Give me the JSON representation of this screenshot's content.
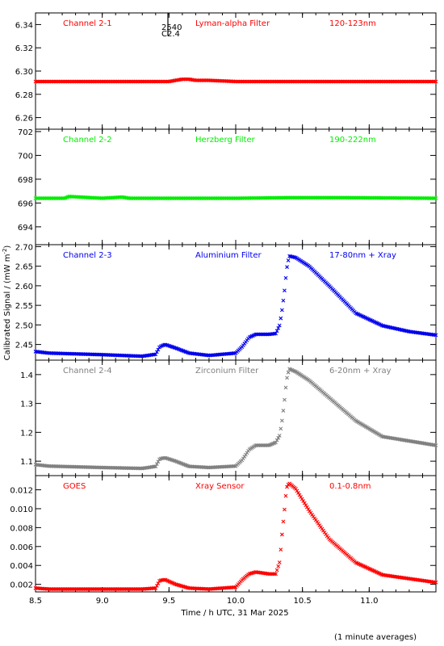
{
  "figure": {
    "ylabel": "Calibrated Signal / (mW m",
    "ylabel_sup": "-2",
    "ylabel_close": ")",
    "xlabel": "Time / h UTC, 31 Mar 2025",
    "footnote": "(1 minute averages)",
    "marker_number_1": "2540",
    "marker_number_2": "C2.4"
  },
  "chart_data": [
    {
      "type": "scatter",
      "panel": "Channel 2-1",
      "labels": [
        "Channel 2-1",
        "Lyman-alpha Filter",
        "120-123nm"
      ],
      "color": "#ff0000",
      "xlim": [
        8.5,
        11.5
      ],
      "ylim": [
        6.25,
        6.35
      ],
      "yticks": [
        6.26,
        6.28,
        6.3,
        6.32,
        6.34
      ],
      "ytick_labels": [
        "6.26",
        "6.28",
        "6.30",
        "6.32",
        "6.34"
      ],
      "x": [
        8.5,
        9.5,
        9.55,
        9.6,
        9.65,
        9.7,
        9.8,
        10.0,
        11.5
      ],
      "y": [
        6.291,
        6.291,
        6.292,
        6.293,
        6.293,
        6.292,
        6.292,
        6.291,
        6.291
      ]
    },
    {
      "type": "scatter",
      "panel": "Channel 2-2",
      "labels": [
        "Channel 2-2",
        "Herzberg Filter",
        "190-222nm"
      ],
      "color": "#00ee00",
      "xlim": [
        8.5,
        11.5
      ],
      "ylim": [
        692.5,
        702.2
      ],
      "yticks": [
        694,
        696,
        698,
        700,
        702
      ],
      "ytick_labels": [
        "694",
        "696",
        "698",
        "700",
        "702"
      ],
      "x": [
        8.5,
        8.72,
        8.75,
        9.0,
        9.15,
        9.2,
        10.0,
        10.4,
        10.8,
        11.5
      ],
      "y": [
        696.4,
        696.4,
        696.55,
        696.4,
        696.5,
        696.4,
        696.4,
        696.45,
        696.45,
        696.4
      ]
    },
    {
      "type": "scatter",
      "panel": "Channel 2-3",
      "labels": [
        "Channel 2-3",
        "Aluminium Filter",
        "17-80nm + Xray"
      ],
      "color": "#0000ee",
      "xlim": [
        8.5,
        11.5
      ],
      "ylim": [
        2.41,
        2.705
      ],
      "yticks": [
        2.45,
        2.5,
        2.55,
        2.6,
        2.65,
        2.7
      ],
      "ytick_labels": [
        "2.45",
        "2.50",
        "2.55",
        "2.60",
        "2.65",
        "2.70"
      ],
      "x": [
        8.5,
        8.6,
        9.0,
        9.3,
        9.4,
        9.43,
        9.47,
        9.55,
        9.65,
        9.8,
        10.0,
        10.05,
        10.1,
        10.15,
        10.25,
        10.3,
        10.33,
        10.35,
        10.37,
        10.38,
        10.4,
        10.45,
        10.55,
        10.7,
        10.9,
        11.1,
        11.3,
        11.5
      ],
      "y": [
        2.432,
        2.428,
        2.424,
        2.42,
        2.425,
        2.444,
        2.45,
        2.441,
        2.428,
        2.422,
        2.428,
        2.445,
        2.468,
        2.476,
        2.476,
        2.478,
        2.5,
        2.545,
        2.6,
        2.64,
        2.676,
        2.672,
        2.65,
        2.6,
        2.53,
        2.498,
        2.483,
        2.474
      ]
    },
    {
      "type": "scatter",
      "panel": "Channel 2-4",
      "labels": [
        "Channel 2-4",
        "Zirconium Filter",
        "6-20nm + Xray"
      ],
      "color": "#808080",
      "xlim": [
        8.5,
        11.5
      ],
      "ylim": [
        1.05,
        1.45
      ],
      "yticks": [
        1.1,
        1.2,
        1.3,
        1.4
      ],
      "ytick_labels": [
        "1.1",
        "1.2",
        "1.3",
        "1.4"
      ],
      "x": [
        8.5,
        8.6,
        9.0,
        9.3,
        9.4,
        9.43,
        9.47,
        9.55,
        9.65,
        9.8,
        10.0,
        10.05,
        10.1,
        10.15,
        10.25,
        10.3,
        10.33,
        10.35,
        10.37,
        10.38,
        10.4,
        10.45,
        10.55,
        10.7,
        10.9,
        11.1,
        11.3,
        11.5
      ],
      "y": [
        1.088,
        1.083,
        1.078,
        1.075,
        1.082,
        1.108,
        1.112,
        1.1,
        1.082,
        1.078,
        1.083,
        1.105,
        1.14,
        1.155,
        1.155,
        1.165,
        1.19,
        1.25,
        1.33,
        1.38,
        1.42,
        1.41,
        1.38,
        1.32,
        1.24,
        1.185,
        1.17,
        1.155
      ]
    },
    {
      "type": "scatter",
      "panel": "GOES",
      "labels": [
        "GOES",
        "Xray Sensor",
        "0.1-0.8nm"
      ],
      "color": "#ff0000",
      "xlim": [
        8.5,
        11.5
      ],
      "ylim": [
        0.0012,
        0.0135
      ],
      "yticks": [
        0.002,
        0.004,
        0.006,
        0.008,
        0.01,
        0.012
      ],
      "ytick_labels": [
        "0.002",
        "0.004",
        "0.006",
        "0.008",
        "0.010",
        "0.012"
      ],
      "x": [
        8.5,
        8.6,
        9.0,
        9.3,
        9.4,
        9.43,
        9.47,
        9.55,
        9.65,
        9.8,
        10.0,
        10.05,
        10.1,
        10.15,
        10.25,
        10.3,
        10.33,
        10.35,
        10.37,
        10.38,
        10.4,
        10.45,
        10.55,
        10.7,
        10.9,
        11.1,
        11.3,
        11.5
      ],
      "y": [
        0.0016,
        0.0015,
        0.0015,
        0.0015,
        0.0016,
        0.0024,
        0.0025,
        0.002,
        0.0016,
        0.0015,
        0.0017,
        0.0025,
        0.0031,
        0.0033,
        0.0031,
        0.0031,
        0.0044,
        0.0078,
        0.0105,
        0.0122,
        0.0127,
        0.0121,
        0.0098,
        0.0068,
        0.0043,
        0.003,
        0.0026,
        0.0022
      ]
    }
  ],
  "xaxis": {
    "ticks": [
      8.5,
      9.0,
      9.5,
      10.0,
      10.5,
      11.0
    ],
    "tick_labels": [
      "8.5",
      "9.0",
      "9.5",
      "10.0",
      "10.5",
      "11.0"
    ]
  }
}
